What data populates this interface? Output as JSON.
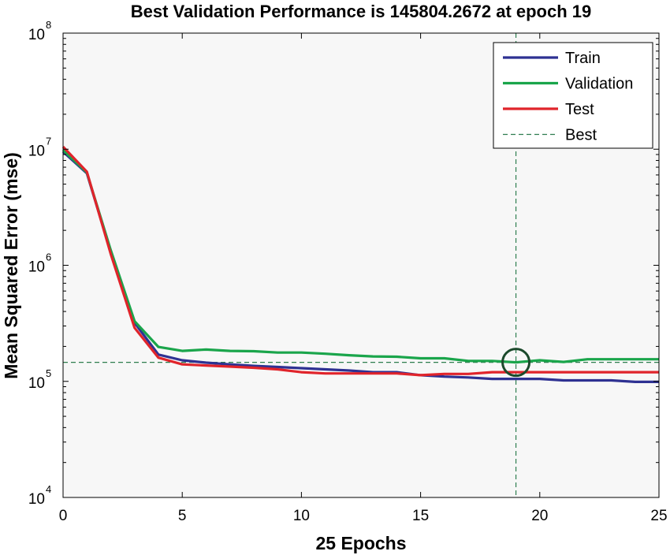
{
  "chart_data": {
    "type": "line",
    "title": "Best Validation Performance is 145804.2672 at epoch 19",
    "xlabel": "25 Epochs",
    "ylabel": "Mean Squared Error  (mse)",
    "xlim": [
      0,
      25
    ],
    "ylim": [
      10000,
      100000000
    ],
    "yscale": "log",
    "xticks": [
      "0",
      "5",
      "10",
      "15",
      "20",
      "25"
    ],
    "yticks": [
      {
        "base": "10",
        "exp": "4"
      },
      {
        "base": "10",
        "exp": "5"
      },
      {
        "base": "10",
        "exp": "6"
      },
      {
        "base": "10",
        "exp": "7"
      },
      {
        "base": "10",
        "exp": "8"
      }
    ],
    "x": [
      0,
      1,
      2,
      3,
      4,
      5,
      6,
      7,
      8,
      9,
      10,
      11,
      12,
      13,
      14,
      15,
      16,
      17,
      18,
      19,
      20,
      21,
      22,
      23,
      24,
      25
    ],
    "series": [
      {
        "name": "Train",
        "color": "#2e3192",
        "values": [
          9500000,
          6200000,
          1300000,
          320000,
          170000,
          152000,
          145000,
          140000,
          136000,
          133000,
          130000,
          127000,
          124000,
          120000,
          120000,
          113000,
          110000,
          108000,
          105000,
          105000,
          105000,
          102000,
          102000,
          102000,
          99000,
          99000
        ]
      },
      {
        "name": "Validation",
        "color": "#1aa54b",
        "values": [
          9800000,
          6300000,
          1350000,
          330000,
          198000,
          183000,
          188000,
          183000,
          182000,
          177000,
          177000,
          173000,
          168000,
          164000,
          163000,
          158000,
          158000,
          150000,
          150000,
          145804,
          152000,
          147000,
          155000,
          155000,
          155000,
          155000
        ]
      },
      {
        "name": "Test",
        "color": "#e0242b",
        "values": [
          10500000,
          6400000,
          1250000,
          290000,
          160000,
          140000,
          137000,
          134000,
          131000,
          127000,
          120000,
          117000,
          117000,
          117000,
          117000,
          113000,
          116000,
          116000,
          120000,
          120000,
          120000,
          120000,
          120000,
          120000,
          120000,
          120000
        ]
      }
    ],
    "best": {
      "label": "Best",
      "epoch": 19,
      "value": 145804.2672,
      "color": "#2e7d4f",
      "marker_color": "#1c4a2c"
    },
    "legend_position": "top-right",
    "grid": false
  }
}
